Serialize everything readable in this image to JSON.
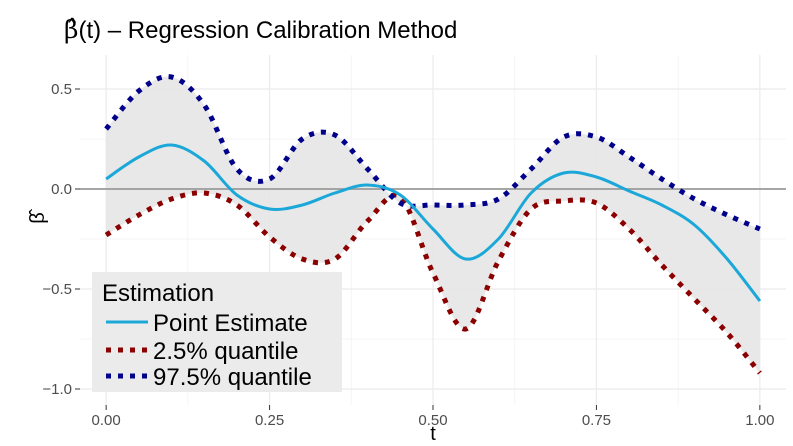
{
  "chart_data": {
    "type": "line",
    "title_symbol": "β̂",
    "title_arg": "(t)",
    "title_rest": " – Regression Calibration Method",
    "xlabel": "t",
    "ylabel": "β̂",
    "xlim": [
      -0.04,
      1.04
    ],
    "ylim": [
      -1.08,
      0.67
    ],
    "x_ticks": [
      0.0,
      0.25,
      0.5,
      0.75,
      1.0
    ],
    "x_tick_labels": [
      "0.00",
      "0.25",
      "0.50",
      "0.75",
      "1.00"
    ],
    "y_ticks": [
      -1.0,
      -0.5,
      0.0,
      0.5
    ],
    "y_tick_labels": [
      "−1.0",
      "−0.5",
      "0.0",
      "0.5"
    ],
    "reference_line": 0,
    "grid": true,
    "legend": {
      "title": "Estimation",
      "position": "bottom-left",
      "entries": [
        {
          "label": "Point Estimate",
          "color": "#1ba8d9",
          "style": "solid"
        },
        {
          "label": "2.5% quantile",
          "color": "#8b0000",
          "style": "dotted"
        },
        {
          "label": "97.5% quantile",
          "color": "#00008b",
          "style": "dotted"
        }
      ]
    },
    "colors": {
      "band": "#e5e5e5",
      "point": "#1ba8d9",
      "lower": "#8b0000",
      "upper": "#00008b",
      "zero_line": "#9a9a9a",
      "grid_major": "#ebebeb",
      "grid_minor": "#f5f5f5"
    },
    "series": [
      {
        "name": "Point Estimate",
        "x": [
          0.0,
          0.05,
          0.1,
          0.15,
          0.2,
          0.25,
          0.3,
          0.35,
          0.4,
          0.45,
          0.5,
          0.55,
          0.6,
          0.65,
          0.7,
          0.75,
          0.8,
          0.85,
          0.9,
          0.95,
          1.0
        ],
        "y": [
          0.05,
          0.16,
          0.22,
          0.14,
          -0.03,
          -0.1,
          -0.08,
          -0.02,
          0.02,
          -0.03,
          -0.2,
          -0.35,
          -0.25,
          -0.02,
          0.08,
          0.06,
          -0.01,
          -0.08,
          -0.18,
          -0.35,
          -0.56
        ]
      },
      {
        "name": "2.5% quantile",
        "x": [
          0.0,
          0.05,
          0.1,
          0.15,
          0.2,
          0.25,
          0.3,
          0.35,
          0.4,
          0.45,
          0.5,
          0.55,
          0.6,
          0.65,
          0.7,
          0.75,
          0.8,
          0.85,
          0.9,
          0.95,
          1.0
        ],
        "y": [
          -0.23,
          -0.13,
          -0.05,
          -0.02,
          -0.08,
          -0.24,
          -0.35,
          -0.35,
          -0.16,
          -0.04,
          -0.42,
          -0.7,
          -0.36,
          -0.1,
          -0.06,
          -0.07,
          -0.2,
          -0.38,
          -0.55,
          -0.72,
          -0.92
        ]
      },
      {
        "name": "97.5% quantile",
        "x": [
          0.0,
          0.05,
          0.1,
          0.15,
          0.2,
          0.25,
          0.3,
          0.35,
          0.4,
          0.45,
          0.5,
          0.55,
          0.6,
          0.65,
          0.7,
          0.75,
          0.8,
          0.85,
          0.9,
          0.95,
          1.0
        ],
        "y": [
          0.3,
          0.49,
          0.56,
          0.42,
          0.1,
          0.05,
          0.25,
          0.27,
          0.1,
          -0.07,
          -0.08,
          -0.08,
          -0.05,
          0.1,
          0.26,
          0.26,
          0.16,
          0.05,
          -0.05,
          -0.13,
          -0.2
        ]
      }
    ]
  }
}
